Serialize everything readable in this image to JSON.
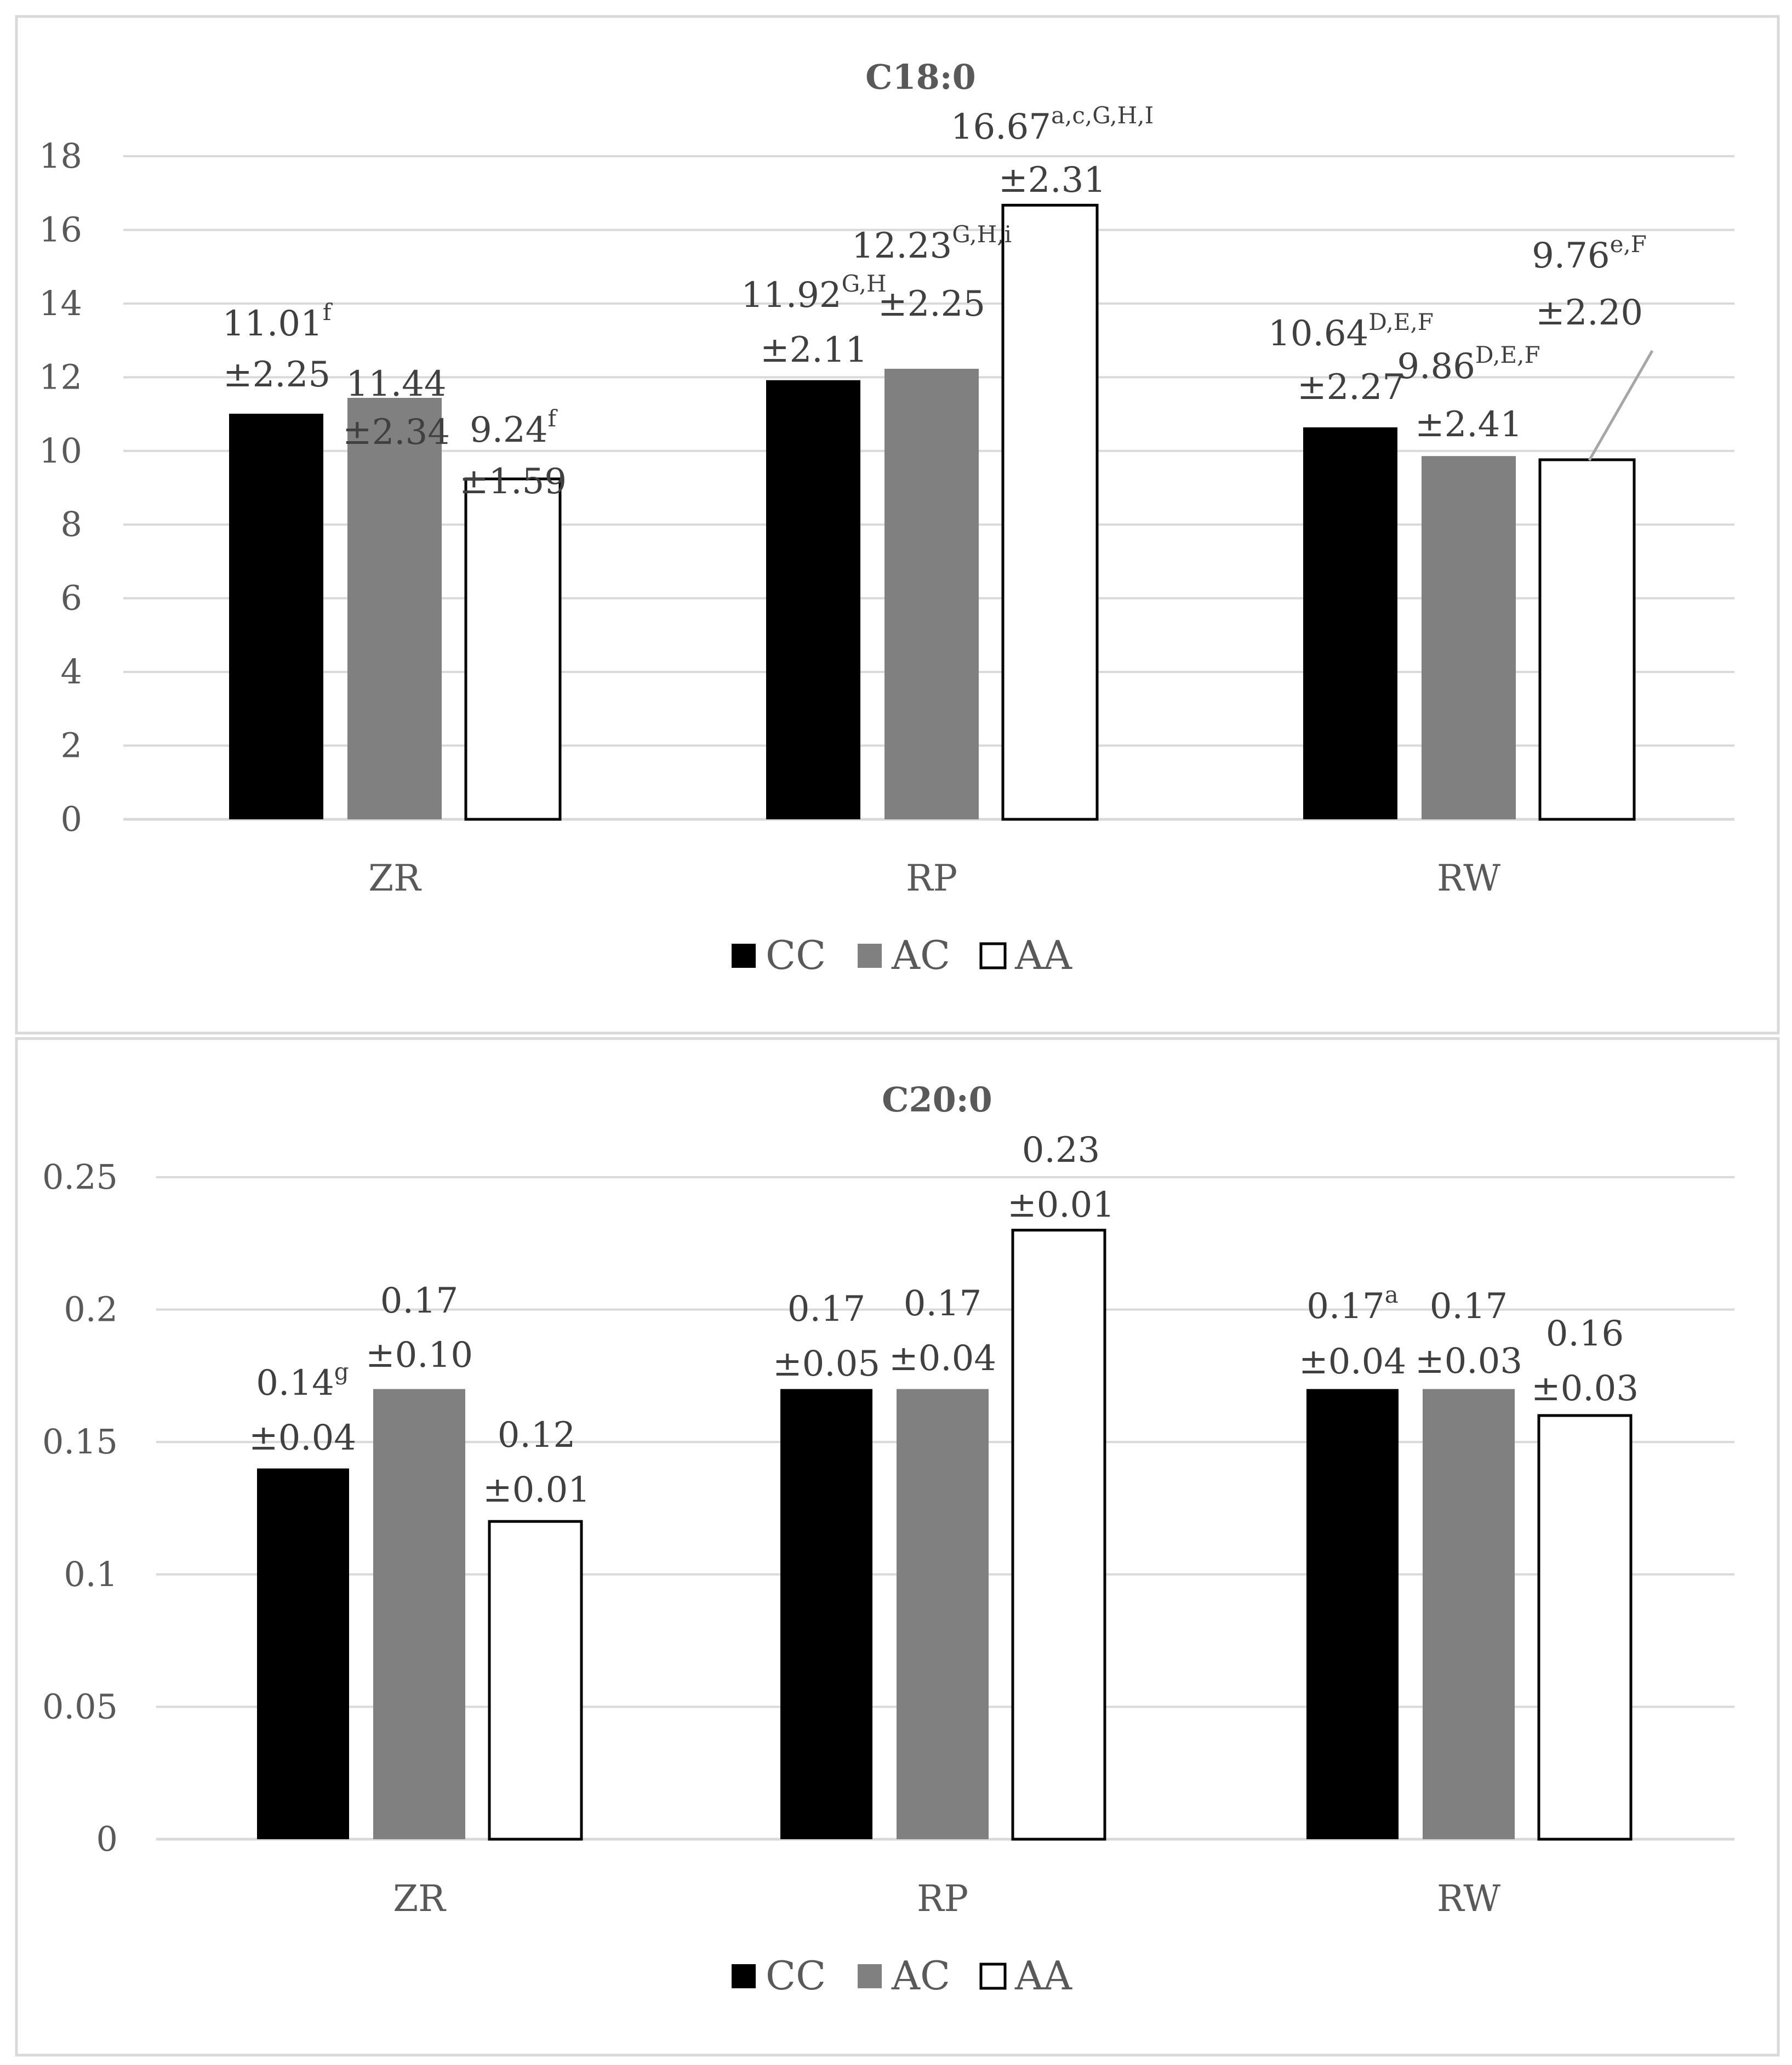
{
  "chart_data": [
    {
      "type": "bar",
      "title": "C18:0",
      "xlabel": "",
      "ylabel": "",
      "ylim": [
        0,
        18
      ],
      "yticks": [
        "0",
        "2",
        "4",
        "6",
        "8",
        "10",
        "12",
        "14",
        "16",
        "18"
      ],
      "categories": [
        "ZR",
        "RP",
        "RW"
      ],
      "legend_position": "bottom",
      "series": [
        {
          "name": "CC",
          "color": "#000000",
          "values": [
            11.01,
            11.92,
            10.64
          ],
          "labels": [
            {
              "value": "11.01",
              "sup": "f",
              "sd": "±2.25"
            },
            {
              "value": "11.92",
              "sup": "G,H",
              "sd": "±2.11"
            },
            {
              "value": "10.64",
              "sup": "D,E,F",
              "sd": "±2.27"
            }
          ]
        },
        {
          "name": "AC",
          "color": "#808080",
          "values": [
            11.44,
            12.23,
            9.86
          ],
          "labels": [
            {
              "value": "11.44",
              "sup": "",
              "sd": "±2.34"
            },
            {
              "value": "12.23",
              "sup": "G,H,i",
              "sd": "±2.25"
            },
            {
              "value": "9.86",
              "sup": "D,E,F",
              "sd": "±2.41"
            }
          ]
        },
        {
          "name": "AA",
          "color": "#ffffff",
          "values": [
            9.24,
            16.67,
            9.76
          ],
          "labels": [
            {
              "value": "9.24",
              "sup": "f",
              "sd": "±1.59"
            },
            {
              "value": "16.67",
              "sup": "a,c,G,H,I",
              "sd": "±2.31"
            },
            {
              "value": "9.76",
              "sup": "e,F",
              "sd": "±2.20"
            }
          ]
        }
      ]
    },
    {
      "type": "bar",
      "title": "C20:0",
      "xlabel": "",
      "ylabel": "",
      "ylim": [
        0,
        0.25
      ],
      "yticks": [
        "0",
        "0.05",
        "0.1",
        "0.15",
        "0.2",
        "0.25"
      ],
      "categories": [
        "ZR",
        "RP",
        "RW"
      ],
      "legend_position": "bottom",
      "series": [
        {
          "name": "CC",
          "color": "#000000",
          "values": [
            0.14,
            0.17,
            0.17
          ],
          "labels": [
            {
              "value": "0.14",
              "sup": "g",
              "sd": "±0.04"
            },
            {
              "value": "0.17",
              "sup": "",
              "sd": "±0.05"
            },
            {
              "value": "0.17",
              "sup": "a",
              "sd": "±0.04"
            }
          ]
        },
        {
          "name": "AC",
          "color": "#808080",
          "values": [
            0.17,
            0.17,
            0.17
          ],
          "labels": [
            {
              "value": "0.17",
              "sup": "",
              "sd": "±0.10"
            },
            {
              "value": "0.17",
              "sup": "",
              "sd": "±0.04"
            },
            {
              "value": "0.17",
              "sup": "",
              "sd": "±0.03"
            }
          ]
        },
        {
          "name": "AA",
          "color": "#ffffff",
          "values": [
            0.12,
            0.23,
            0.16
          ],
          "labels": [
            {
              "value": "0.12",
              "sup": "",
              "sd": "±0.01"
            },
            {
              "value": "0.23",
              "sup": "",
              "sd": "±0.01"
            },
            {
              "value": "0.16",
              "sup": "",
              "sd": "±0.03"
            }
          ]
        }
      ]
    }
  ]
}
